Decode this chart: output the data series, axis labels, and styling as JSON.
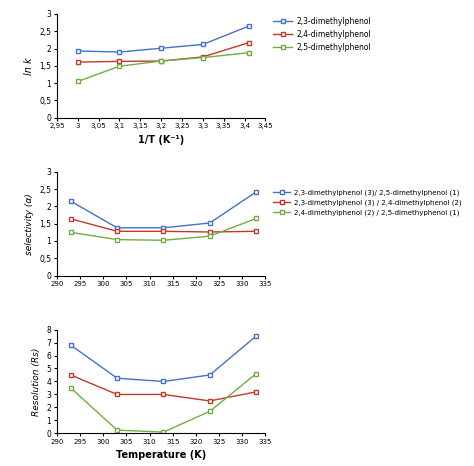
{
  "panel1": {
    "xlabel": "1/T (K⁻¹)",
    "ylabel": "ln k",
    "x": [
      3.0,
      3.1,
      3.2,
      3.3,
      3.41
    ],
    "series": [
      {
        "label": "2,3-dimethylphenol",
        "color": "#4472C4",
        "y": [
          1.93,
          1.9,
          2.01,
          2.12,
          2.65
        ]
      },
      {
        "label": "2,4-dimethylphenol",
        "color": "#C0392B",
        "y": [
          1.61,
          1.63,
          1.64,
          1.76,
          2.17
        ]
      },
      {
        "label": "2,5-dimethylphenol",
        "color": "#70AD47",
        "y": [
          1.05,
          1.49,
          1.64,
          1.74,
          1.88
        ]
      }
    ],
    "xlim": [
      2.95,
      3.45
    ],
    "ylim": [
      0,
      3
    ],
    "xticks": [
      2.95,
      3.0,
      3.05,
      3.1,
      3.15,
      3.2,
      3.25,
      3.3,
      3.35,
      3.4,
      3.45
    ],
    "xticklabels": [
      "2,95",
      "3",
      "3,05",
      "3,1",
      "3,15",
      "3,2",
      "3,25",
      "3,3",
      "3,35",
      "3,4",
      "3,45"
    ],
    "yticks": [
      0,
      0.5,
      1.0,
      1.5,
      2.0,
      2.5,
      3.0
    ],
    "yticklabels": [
      "0",
      "0,5",
      "1",
      "1,5",
      "2",
      "2,5",
      "3"
    ]
  },
  "panel2": {
    "ylabel": "selectivity (α)",
    "x": [
      293,
      303,
      313,
      323,
      333
    ],
    "series": [
      {
        "label": "2,3-dimethylphenol (3)/ 2,5-dimethylphenol (1)",
        "color": "#4472C4",
        "y": [
          2.15,
          1.38,
          1.38,
          1.52,
          2.42
        ]
      },
      {
        "label": "2,3-dimethylphenol (3) / 2,4-dimethylphenol (2)",
        "color": "#C0392B",
        "y": [
          1.64,
          1.28,
          1.28,
          1.26,
          1.28
        ]
      },
      {
        "label": "2,4-dimethylphenol (2) / 2,5-dimethyphenol (1)",
        "color": "#70AD47",
        "y": [
          1.25,
          1.04,
          1.02,
          1.14,
          1.65
        ]
      }
    ],
    "xlim": [
      290,
      335
    ],
    "ylim": [
      0,
      3
    ],
    "xticks": [
      290,
      295,
      300,
      305,
      310,
      315,
      320,
      325,
      330,
      335
    ],
    "xticklabels": [
      "290",
      "295",
      "300",
      "305",
      "310",
      "315",
      "320",
      "325",
      "330",
      "335"
    ],
    "yticks": [
      0,
      0.5,
      1.0,
      1.5,
      2.0,
      2.5,
      3.0
    ],
    "yticklabels": [
      "0",
      "0,5",
      "1",
      "1,5",
      "2",
      "2,5",
      "3"
    ]
  },
  "panel3": {
    "xlabel": "Temperature (K)",
    "ylabel": "Resolution (Rs)",
    "x": [
      293,
      303,
      313,
      323,
      333
    ],
    "series": [
      {
        "label": "2,3-dimethylphenol (3) / 2,5-dimethylphenol (1)",
        "color": "#4472C4",
        "y": [
          6.8,
          4.25,
          4.0,
          4.5,
          7.5
        ]
      },
      {
        "label": "2,3-dimethylphenol (3) / 2,4-dimethylphenol (2)",
        "color": "#C0392B",
        "y": [
          4.5,
          3.0,
          3.0,
          2.5,
          3.2
        ]
      },
      {
        "label": "2,4-dimethylphenol (2) / 2,5-dimethylphenol (1)",
        "color": "#70AD47",
        "y": [
          3.5,
          0.25,
          0.1,
          1.7,
          4.6
        ]
      }
    ],
    "xlim": [
      290,
      335
    ],
    "ylim": [
      0,
      8
    ],
    "xticks": [
      290,
      295,
      300,
      305,
      310,
      315,
      320,
      325,
      330,
      335
    ],
    "xticklabels": [
      "290",
      "295",
      "300",
      "305",
      "310",
      "315",
      "320",
      "325",
      "330",
      "335"
    ],
    "yticks": [
      0,
      1,
      2,
      3,
      4,
      5,
      6,
      7,
      8
    ],
    "yticklabels": [
      "0",
      "1",
      "2",
      "3",
      "4",
      "5",
      "6",
      "7",
      "8"
    ]
  },
  "fig_width": 4.74,
  "fig_height": 4.66,
  "dpi": 100
}
